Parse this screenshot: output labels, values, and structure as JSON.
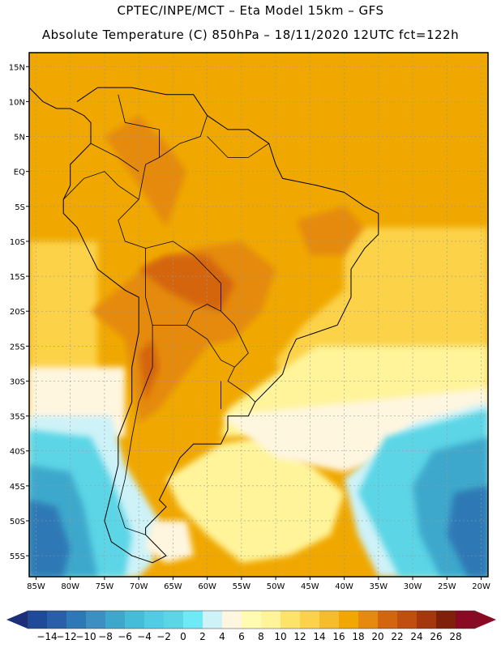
{
  "header": {
    "line1": "CPTEC/INPE/MCT –   Eta Model 15km – GFS",
    "line2": "Absolute Temperature (C) 850hPa – 18/11/2020 12UTC fct=122h"
  },
  "map": {
    "lon_range": [
      -86,
      -19
    ],
    "lat_range": [
      -58,
      17
    ],
    "lat_ticks": [
      {
        "value": 15,
        "label": "15N"
      },
      {
        "value": 10,
        "label": "10N"
      },
      {
        "value": 5,
        "label": "5N"
      },
      {
        "value": 0,
        "label": "EQ"
      },
      {
        "value": -5,
        "label": "5S"
      },
      {
        "value": -10,
        "label": "10S"
      },
      {
        "value": -15,
        "label": "15S"
      },
      {
        "value": -20,
        "label": "20S"
      },
      {
        "value": -25,
        "label": "25S"
      },
      {
        "value": -30,
        "label": "30S"
      },
      {
        "value": -35,
        "label": "35S"
      },
      {
        "value": -40,
        "label": "40S"
      },
      {
        "value": -45,
        "label": "45S"
      },
      {
        "value": -50,
        "label": "50S"
      },
      {
        "value": -55,
        "label": "55S"
      }
    ],
    "lon_ticks": [
      {
        "value": -85,
        "label": "85W"
      },
      {
        "value": -80,
        "label": "80W"
      },
      {
        "value": -75,
        "label": "75W"
      },
      {
        "value": -70,
        "label": "70W"
      },
      {
        "value": -65,
        "label": "65W"
      },
      {
        "value": -60,
        "label": "60W"
      },
      {
        "value": -55,
        "label": "55W"
      },
      {
        "value": -50,
        "label": "50W"
      },
      {
        "value": -45,
        "label": "45W"
      },
      {
        "value": -40,
        "label": "40W"
      },
      {
        "value": -35,
        "label": "35W"
      },
      {
        "value": -30,
        "label": "30W"
      },
      {
        "value": -25,
        "label": "25W"
      },
      {
        "value": -20,
        "label": "20W"
      }
    ],
    "temperature_zones": [
      {
        "temp": 18,
        "color": "#f0a800",
        "coords": [
          [
            -86,
            17
          ],
          [
            -19,
            17
          ],
          [
            -19,
            -58
          ],
          [
            -86,
            -58
          ]
        ]
      },
      {
        "temp": 14,
        "color": "#fcd24a",
        "coords": [
          [
            -40,
            -8
          ],
          [
            -19,
            -8
          ],
          [
            -19,
            -32
          ],
          [
            -48,
            -32
          ],
          [
            -50,
            -27
          ],
          [
            -46,
            -22
          ],
          [
            -40,
            -17
          ]
        ]
      },
      {
        "temp": 10,
        "color": "#fff49a",
        "coords": [
          [
            -44,
            -25
          ],
          [
            -19,
            -25
          ],
          [
            -19,
            -36
          ],
          [
            -58,
            -38
          ],
          [
            -57,
            -34
          ],
          [
            -50,
            -29
          ]
        ]
      },
      {
        "temp": 10,
        "color": "#fff49a",
        "coords": [
          [
            -66,
            -44
          ],
          [
            -58,
            -39
          ],
          [
            -52,
            -38
          ],
          [
            -45,
            -42
          ],
          [
            -40,
            -46
          ],
          [
            -42,
            -52
          ],
          [
            -48,
            -55
          ],
          [
            -55,
            -56
          ],
          [
            -60,
            -52
          ],
          [
            -64,
            -48
          ]
        ]
      },
      {
        "temp": 14,
        "color": "#fcd24a",
        "coords": [
          [
            -86,
            -10
          ],
          [
            -76,
            -10
          ],
          [
            -76,
            -40
          ],
          [
            -75,
            -50
          ],
          [
            -70,
            -58
          ],
          [
            -86,
            -58
          ]
        ]
      },
      {
        "temp": 6,
        "color": "#fff6e0",
        "coords": [
          [
            -86,
            -28
          ],
          [
            -72,
            -28
          ],
          [
            -72,
            -38
          ],
          [
            -86,
            -38
          ]
        ]
      },
      {
        "temp": 6,
        "color": "#fff6e0",
        "coords": [
          [
            -58,
            -35
          ],
          [
            -19,
            -31
          ],
          [
            -19,
            -38
          ],
          [
            -30,
            -40
          ],
          [
            -40,
            -43
          ],
          [
            -50,
            -41
          ]
        ]
      },
      {
        "temp": 4,
        "color": "#cdf2f8",
        "coords": [
          [
            -86,
            -35
          ],
          [
            -74,
            -35
          ],
          [
            -72,
            -42
          ],
          [
            -67,
            -50
          ],
          [
            -68,
            -56
          ],
          [
            -70,
            -58
          ],
          [
            -86,
            -58
          ]
        ]
      },
      {
        "temp": 4,
        "color": "#cdf2f8",
        "coords": [
          [
            -19,
            -33
          ],
          [
            -30,
            -36
          ],
          [
            -40,
            -44
          ],
          [
            -38,
            -52
          ],
          [
            -35,
            -58
          ],
          [
            -19,
            -58
          ]
        ]
      },
      {
        "temp": 0,
        "color": "#5cd5e6",
        "coords": [
          [
            -86,
            -37
          ],
          [
            -77,
            -38
          ],
          [
            -74,
            -44
          ],
          [
            -71,
            -52
          ],
          [
            -72,
            -58
          ],
          [
            -86,
            -58
          ]
        ]
      },
      {
        "temp": 0,
        "color": "#5cd5e6",
        "coords": [
          [
            -19,
            -34
          ],
          [
            -34,
            -38
          ],
          [
            -38,
            -46
          ],
          [
            -35,
            -52
          ],
          [
            -32,
            -58
          ],
          [
            -19,
            -58
          ]
        ]
      },
      {
        "temp": -4,
        "color": "#3da8cc",
        "coords": [
          [
            -86,
            -42
          ],
          [
            -80,
            -43
          ],
          [
            -78,
            -48
          ],
          [
            -76,
            -58
          ],
          [
            -86,
            -58
          ]
        ]
      },
      {
        "temp": -4,
        "color": "#3da8cc",
        "coords": [
          [
            -19,
            -38
          ],
          [
            -27,
            -40
          ],
          [
            -30,
            -45
          ],
          [
            -29,
            -52
          ],
          [
            -26,
            -58
          ],
          [
            -19,
            -58
          ]
        ]
      },
      {
        "temp": -8,
        "color": "#2e79b5",
        "coords": [
          [
            -86,
            -47
          ],
          [
            -82,
            -48
          ],
          [
            -80,
            -54
          ],
          [
            -81,
            -58
          ],
          [
            -86,
            -58
          ]
        ]
      },
      {
        "temp": -8,
        "color": "#2e79b5",
        "coords": [
          [
            -19,
            -45
          ],
          [
            -24,
            -46
          ],
          [
            -25,
            -52
          ],
          [
            -22,
            -58
          ],
          [
            -19,
            -58
          ]
        ]
      },
      {
        "temp": 6,
        "color": "#fff6e0",
        "coords": [
          [
            -68,
            -50
          ],
          [
            -63,
            -50
          ],
          [
            -62,
            -55
          ],
          [
            -66,
            -56
          ],
          [
            -69,
            -54
          ]
        ]
      },
      {
        "temp": 20,
        "color": "#e58a0f",
        "coords": [
          [
            -77,
            -20
          ],
          [
            -72,
            -16
          ],
          [
            -68,
            -13
          ],
          [
            -62,
            -11
          ],
          [
            -55,
            -10
          ],
          [
            -50,
            -14
          ],
          [
            -52,
            -20
          ],
          [
            -56,
            -24
          ],
          [
            -60,
            -25
          ],
          [
            -64,
            -30
          ],
          [
            -67,
            -34
          ],
          [
            -70,
            -36
          ],
          [
            -71,
            -30
          ],
          [
            -72,
            -24
          ]
        ]
      },
      {
        "temp": 20,
        "color": "#e58a0f",
        "coords": [
          [
            -75,
            5
          ],
          [
            -70,
            -2
          ],
          [
            -66,
            -8
          ],
          [
            -63,
            0
          ],
          [
            -66,
            4
          ],
          [
            -70,
            8
          ]
        ]
      },
      {
        "temp": 20,
        "color": "#e58a0f",
        "coords": [
          [
            -47,
            -7
          ],
          [
            -40,
            -5
          ],
          [
            -37,
            -8
          ],
          [
            -40,
            -12
          ],
          [
            -45,
            -12
          ]
        ]
      },
      {
        "temp": 22,
        "color": "#d4650f",
        "coords": [
          [
            -70,
            -14
          ],
          [
            -66,
            -12
          ],
          [
            -60,
            -12
          ],
          [
            -56,
            -16
          ],
          [
            -58,
            -20
          ],
          [
            -62,
            -19
          ],
          [
            -66,
            -17
          ]
        ]
      },
      {
        "temp": 22,
        "color": "#d4650f",
        "coords": [
          [
            -70,
            -26
          ],
          [
            -68,
            -24
          ],
          [
            -67,
            -28
          ],
          [
            -69,
            -33
          ]
        ]
      }
    ],
    "coastline": [
      [
        -79,
        10
      ],
      [
        -76,
        12
      ],
      [
        -71,
        12
      ],
      [
        -66,
        11
      ],
      [
        -62,
        11
      ],
      [
        -60,
        8
      ],
      [
        -57,
        6
      ],
      [
        -54,
        6
      ],
      [
        -51,
        4
      ],
      [
        -50,
        1
      ],
      [
        -49,
        -1
      ],
      [
        -44,
        -2
      ],
      [
        -40,
        -3
      ],
      [
        -37,
        -5
      ],
      [
        -35,
        -6
      ],
      [
        -35,
        -9
      ],
      [
        -37,
        -11
      ],
      [
        -39,
        -14
      ],
      [
        -39,
        -18
      ],
      [
        -40,
        -20
      ],
      [
        -41,
        -22
      ],
      [
        -44,
        -23
      ],
      [
        -47,
        -24
      ],
      [
        -48,
        -26
      ],
      [
        -49,
        -29
      ],
      [
        -51,
        -31
      ],
      [
        -53,
        -33
      ],
      [
        -54,
        -35
      ],
      [
        -57,
        -35
      ],
      [
        -57,
        -37
      ],
      [
        -58,
        -39
      ],
      [
        -62,
        -39
      ],
      [
        -64,
        -41
      ],
      [
        -65,
        -43
      ],
      [
        -66,
        -45
      ],
      [
        -67,
        -47
      ],
      [
        -66,
        -48
      ],
      [
        -69,
        -51
      ],
      [
        -69,
        -52
      ],
      [
        -68,
        -53
      ],
      [
        -66,
        -55
      ],
      [
        -68,
        -56
      ],
      [
        -71,
        -55
      ],
      [
        -74,
        -53
      ],
      [
        -75,
        -50
      ],
      [
        -74,
        -46
      ],
      [
        -73,
        -42
      ],
      [
        -73,
        -38
      ],
      [
        -71,
        -33
      ],
      [
        -71,
        -28
      ],
      [
        -70,
        -23
      ],
      [
        -70,
        -18
      ],
      [
        -72,
        -17
      ],
      [
        -76,
        -14
      ],
      [
        -77,
        -12
      ],
      [
        -79,
        -8
      ],
      [
        -81,
        -6
      ],
      [
        -81,
        -4
      ],
      [
        -80,
        -2
      ],
      [
        -80,
        1
      ],
      [
        -79,
        2
      ],
      [
        -77,
        4
      ],
      [
        -77,
        7
      ],
      [
        -78,
        8
      ],
      [
        -80,
        9
      ],
      [
        -82,
        9
      ],
      [
        -84,
        10
      ],
      [
        -86,
        12
      ]
    ],
    "borders": [
      [
        [
          -73,
          11
        ],
        [
          -72,
          7
        ],
        [
          -67,
          6
        ],
        [
          -67,
          2
        ],
        [
          -69,
          1
        ],
        [
          -70,
          -4
        ]
      ],
      [
        [
          -67,
          2
        ],
        [
          -64,
          4
        ],
        [
          -61,
          5
        ],
        [
          -60,
          8
        ]
      ],
      [
        [
          -60,
          5
        ],
        [
          -57,
          2
        ],
        [
          -54,
          2
        ],
        [
          -51,
          4
        ]
      ],
      [
        [
          -70,
          -4
        ],
        [
          -73,
          -7
        ],
        [
          -72,
          -10
        ],
        [
          -69,
          -11
        ],
        [
          -65,
          -10
        ],
        [
          -62,
          -12
        ],
        [
          -60,
          -14
        ],
        [
          -58,
          -16
        ],
        [
          -58,
          -20
        ],
        [
          -56,
          -22
        ],
        [
          -55,
          -24
        ],
        [
          -54,
          -26
        ],
        [
          -56,
          -28
        ],
        [
          -57,
          -30
        ],
        [
          -54,
          -32
        ],
        [
          -53,
          -33
        ]
      ],
      [
        [
          -69,
          -11
        ],
        [
          -69,
          -16
        ],
        [
          -69,
          -18
        ],
        [
          -68,
          -22
        ],
        [
          -66,
          -22
        ],
        [
          -63,
          -22
        ],
        [
          -62,
          -20
        ],
        [
          -60,
          -19
        ],
        [
          -58,
          -20
        ]
      ],
      [
        [
          -63,
          -22
        ],
        [
          -60,
          -24
        ],
        [
          -58,
          -27
        ],
        [
          -56,
          -28
        ]
      ],
      [
        [
          -58,
          -30
        ],
        [
          -58,
          -34
        ]
      ],
      [
        [
          -68,
          -22
        ],
        [
          -68,
          -28
        ],
        [
          -70,
          -33
        ],
        [
          -71,
          -38
        ],
        [
          -72,
          -44
        ],
        [
          -73,
          -48
        ],
        [
          -72,
          -51
        ],
        [
          -69,
          -52
        ]
      ],
      [
        [
          -81,
          -4
        ],
        [
          -78,
          -1
        ],
        [
          -75,
          0
        ],
        [
          -73,
          -2
        ],
        [
          -70,
          -4
        ]
      ],
      [
        [
          -77,
          4
        ],
        [
          -73,
          2
        ],
        [
          -70,
          0
        ]
      ]
    ]
  },
  "colorbar": {
    "labels": [
      "-14",
      "-12",
      "-10",
      "-8",
      "-6",
      "-4",
      "-2",
      "0",
      "2",
      "4",
      "6",
      "8",
      "10",
      "12",
      "14",
      "16",
      "18",
      "20",
      "22",
      "24",
      "26",
      "28"
    ],
    "colors": [
      "#1e4a98",
      "#2a5fa8",
      "#2e79b5",
      "#3d8fc2",
      "#3da8cc",
      "#45bcd8",
      "#52cce4",
      "#5cd5e6",
      "#6fe9f5",
      "#cdf2f8",
      "#fff6e0",
      "#fffbb0",
      "#fff49a",
      "#fde36a",
      "#fcd24a",
      "#f5bd2c",
      "#f0a800",
      "#e58a0f",
      "#d4650f",
      "#c04e0e",
      "#a4380c",
      "#7f200a",
      "#8a0a24"
    ]
  }
}
